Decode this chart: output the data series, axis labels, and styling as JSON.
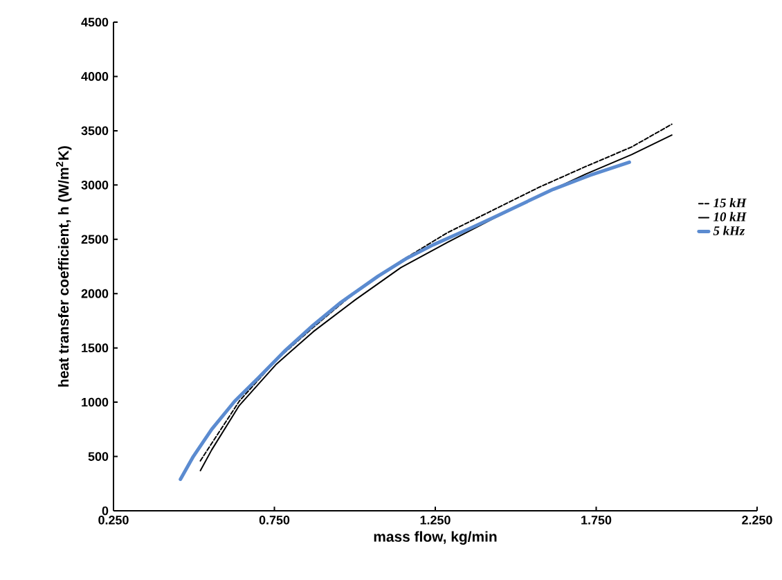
{
  "chart_data": {
    "type": "line",
    "xlabel": "mass flow, kg/min",
    "ylabel": "heat transfer coefficient, h (W/m$^{2}$K)",
    "xlim": [
      0.25,
      2.25
    ],
    "xticks": [
      {
        "value": 0.25,
        "label": "0.250"
      },
      {
        "value": 0.75,
        "label": "0.750"
      },
      {
        "value": 1.25,
        "label": "1.250"
      },
      {
        "value": 1.75,
        "label": "1.750"
      },
      {
        "value": 2.25,
        "label": "2.250"
      }
    ],
    "ylim": [
      0,
      4500
    ],
    "yticks": [
      0,
      500,
      1000,
      1500,
      2000,
      2500,
      3000,
      3500,
      4000,
      4500
    ],
    "grid": false,
    "legend": "right",
    "series": [
      {
        "name": "15 kH",
        "color": "#000000",
        "line_style": "dashed",
        "x": [
          0.52,
          0.555,
          0.641,
          0.756,
          0.871,
          1.0,
          1.143,
          1.287,
          1.43,
          1.573,
          1.717,
          1.86,
          1.985
        ],
        "values": [
          460,
          620,
          1010,
          1390,
          1690,
          2010,
          2300,
          2560,
          2770,
          2980,
          3170,
          3350,
          3560
        ]
      },
      {
        "name": "10 kH",
        "color": "#000000",
        "line_style": "solid",
        "x": [
          0.52,
          0.555,
          0.641,
          0.756,
          0.871,
          1.0,
          1.143,
          1.287,
          1.43,
          1.573,
          1.717,
          1.86,
          1.985
        ],
        "values": [
          370,
          560,
          970,
          1350,
          1650,
          1940,
          2240,
          2470,
          2690,
          2900,
          3100,
          3280,
          3460
        ]
      },
      {
        "name": "5 kHz",
        "color": "#5b8bd0",
        "line_style": "solid",
        "x": [
          0.458,
          0.498,
          0.555,
          0.627,
          0.699,
          0.785,
          0.871,
          0.957,
          1.072,
          1.158,
          1.244,
          1.358,
          1.43,
          1.53,
          1.616,
          1.731,
          1.853
        ],
        "values": [
          290,
          500,
          750,
          1010,
          1220,
          1480,
          1710,
          1920,
          2160,
          2320,
          2450,
          2600,
          2700,
          2840,
          2960,
          3090,
          3210
        ]
      }
    ]
  }
}
